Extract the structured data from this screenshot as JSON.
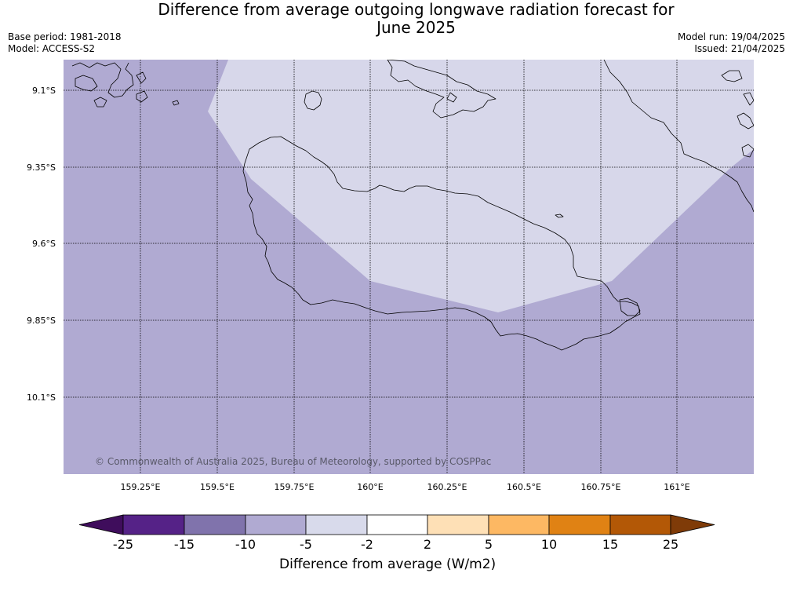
{
  "header": {
    "title_line1": "Difference from average outgoing longwave radiation forecast for",
    "title_line2": "June 2025",
    "base_period": "Base period: 1981-2018",
    "model": "Model: ACCESS-S2",
    "model_run": "Model run: 19/04/2025",
    "issued": "Issued: 21/04/2025"
  },
  "map": {
    "lat_labels": [
      "9.1°S",
      "9.35°S",
      "9.6°S",
      "9.85°S",
      "10.1°S"
    ],
    "lon_labels": [
      "159.25°E",
      "159.5°E",
      "159.75°E",
      "160°E",
      "160.25°E",
      "160.5°E",
      "160.75°E",
      "161°E"
    ],
    "copyright": "© Commonwealth of Australia 2025, Bureau of Meteorology, supported by COSPPac",
    "colors": {
      "background_class": "#b0aad2",
      "upper_class": "#d7d7ea",
      "coast": "#000000"
    },
    "classes_shown": [
      "-10 to -5",
      "-5 to -2"
    ]
  },
  "colorbar": {
    "ticks": [
      "-25",
      "-15",
      "-10",
      "-5",
      "-2",
      "2",
      "5",
      "10",
      "15",
      "25"
    ],
    "colors": [
      "#3f0d5c",
      "#552287",
      "#8073ac",
      "#b0aad2",
      "#d8daeb",
      "#ffffff",
      "#fee0b6",
      "#fdb863",
      "#e08214",
      "#b35806",
      "#7f3b08"
    ],
    "label": "Difference from average (W/m2)"
  }
}
